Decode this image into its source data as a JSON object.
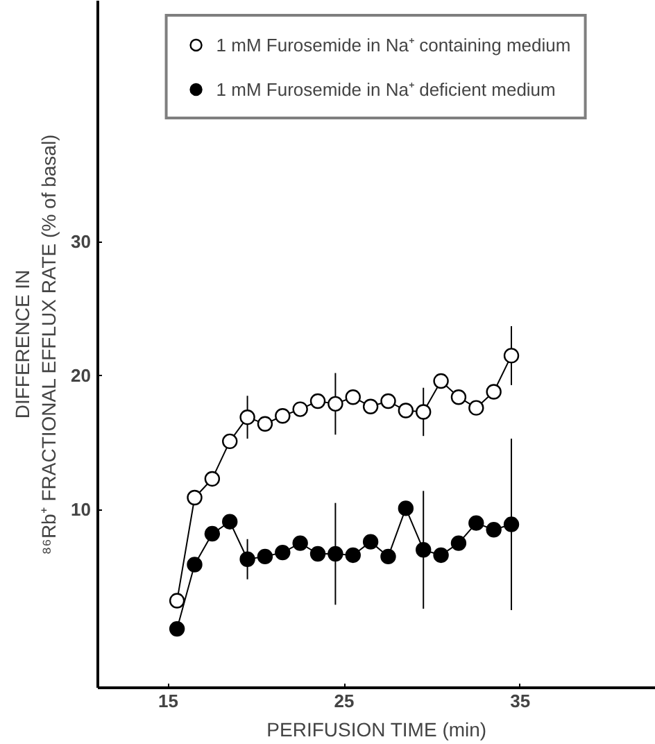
{
  "chart_data": {
    "type": "line",
    "xlabel": "PERIFUSION TIME (min)",
    "ylabel": "DIFFERENCE IN\n⁸⁶Rb⁺ FRACTIONAL EFFLUX RATE (% of basal)",
    "x": [
      15.5,
      16.5,
      17.5,
      18.5,
      19.5,
      20.5,
      21.5,
      22.5,
      23.5,
      24.5,
      25.5,
      26.5,
      27.5,
      28.5,
      29.5,
      30.5,
      31.5,
      32.5,
      33.5,
      34.5
    ],
    "series": [
      {
        "name": "1 mM Furosemide in Na⁺ containing medium",
        "color": "#ffffff",
        "values": [
          3.2,
          10.9,
          12.3,
          15.1,
          16.9,
          16.4,
          17.0,
          17.5,
          18.1,
          17.9,
          18.4,
          17.7,
          18.1,
          17.4,
          17.3,
          19.6,
          18.4,
          17.6,
          18.8,
          21.5
        ],
        "errors": [
          null,
          null,
          null,
          null,
          1.6,
          null,
          null,
          null,
          null,
          2.3,
          null,
          null,
          null,
          null,
          1.8,
          null,
          null,
          null,
          null,
          2.2
        ]
      },
      {
        "name": "1 mM Furosemide in Na⁺ deficient medium",
        "color": "#000000",
        "values": [
          1.1,
          5.9,
          8.2,
          9.1,
          6.3,
          6.5,
          6.8,
          7.5,
          6.7,
          6.7,
          6.6,
          7.6,
          6.5,
          10.1,
          7.0,
          6.6,
          7.5,
          9.0,
          8.5,
          8.9
        ],
        "errors": [
          null,
          null,
          null,
          null,
          1.5,
          null,
          null,
          null,
          null,
          3.8,
          null,
          null,
          null,
          null,
          4.4,
          null,
          null,
          null,
          null,
          6.4
        ]
      }
    ],
    "xlim": [
      11,
      42.7
    ],
    "ylim": [
      -3.3,
      48
    ],
    "xticks": [
      15,
      25,
      35
    ],
    "yticks": [
      10,
      20,
      30
    ],
    "grid": false,
    "legend": "top",
    "marker": "circle",
    "line_style": "solid"
  }
}
